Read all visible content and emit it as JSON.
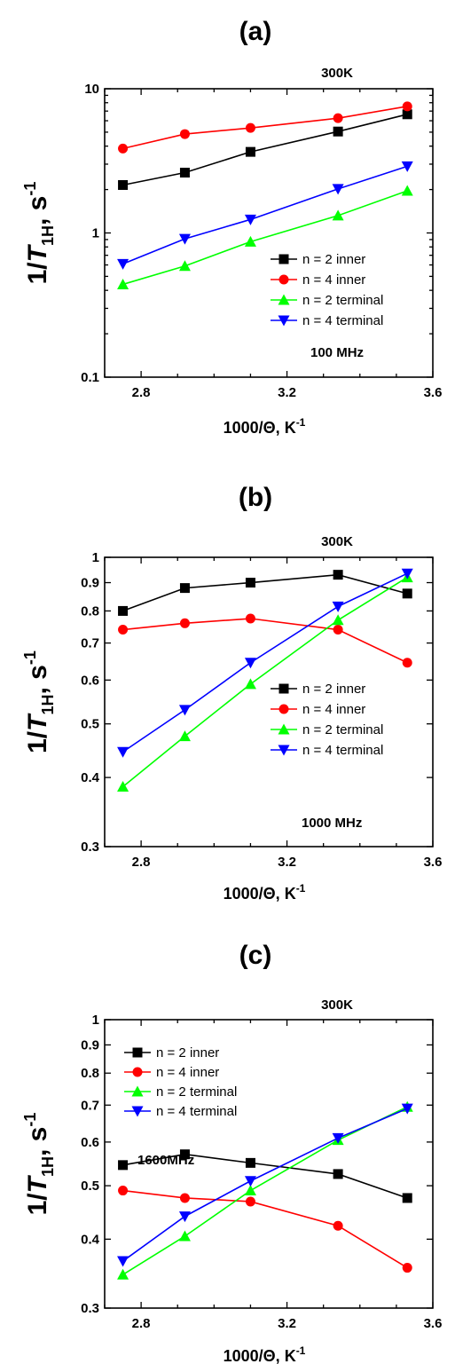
{
  "chart_data": [
    {
      "type": "line",
      "panel_label": "(a)",
      "note_top": "300K",
      "note_freq": "100 MHz",
      "xlabel": "1000/Θ, K",
      "xlabel_sup": "-1",
      "ylabel_main": "1/",
      "ylabel_var": "T",
      "ylabel_sub": "1H",
      "ylabel_unit": ", s",
      "ylabel_sup": "-1",
      "yscale": "log",
      "xlim": [
        2.7,
        3.6
      ],
      "ylim": [
        0.1,
        10
      ],
      "x_ticks": [
        2.8,
        3.2,
        3.6
      ],
      "x_tick_labels": [
        "2.8",
        "3.2",
        "3.6"
      ],
      "y_ticks": [
        0.1,
        1,
        10
      ],
      "y_tick_labels": [
        "0.1",
        "1",
        "10"
      ],
      "legend_position": "lower-right",
      "x": [
        2.75,
        2.92,
        3.1,
        3.34,
        3.53
      ],
      "series": [
        {
          "name": "n = 2 inner",
          "color": "#000000",
          "marker": "square",
          "values": [
            2.15,
            2.62,
            3.65,
            5.05,
            6.65
          ]
        },
        {
          "name": "n = 4 inner",
          "color": "#ff0000",
          "marker": "circle",
          "values": [
            3.85,
            4.85,
            5.35,
            6.25,
            7.55
          ]
        },
        {
          "name": "n = 2 terminal",
          "color": "#00ff00",
          "marker": "triangle-up",
          "values": [
            0.44,
            0.59,
            0.87,
            1.32,
            1.96
          ]
        },
        {
          "name": "n = 4 terminal",
          "color": "#0000ff",
          "marker": "triangle-down",
          "values": [
            0.61,
            0.91,
            1.24,
            2.02,
            2.9
          ]
        }
      ]
    },
    {
      "type": "line",
      "panel_label": "(b)",
      "note_top": "300K",
      "note_freq": "1000 MHz",
      "xlabel": "1000/Θ, K",
      "xlabel_sup": "-1",
      "ylabel_main": "1/",
      "ylabel_var": "T",
      "ylabel_sub": "1H",
      "ylabel_unit": ", s",
      "ylabel_sup": "-1",
      "yscale": "log",
      "xlim": [
        2.7,
        3.6
      ],
      "ylim": [
        0.3,
        1
      ],
      "x_ticks": [
        2.8,
        3.2,
        3.6
      ],
      "x_tick_labels": [
        "2.8",
        "3.2",
        "3.6"
      ],
      "y_ticks": [
        0.3,
        0.4,
        0.5,
        0.6,
        0.7,
        0.8,
        0.9,
        1
      ],
      "y_tick_labels": [
        "0.3",
        "0.4",
        "0.5",
        "0.6",
        "0.7",
        "0.8",
        "0.9",
        "1"
      ],
      "legend_position": "lower-right",
      "x": [
        2.75,
        2.92,
        3.1,
        3.34,
        3.53
      ],
      "series": [
        {
          "name": "n = 2 inner",
          "color": "#000000",
          "marker": "square",
          "values": [
            0.8,
            0.88,
            0.9,
            0.93,
            0.86
          ]
        },
        {
          "name": "n = 4 inner",
          "color": "#ff0000",
          "marker": "circle",
          "values": [
            0.74,
            0.76,
            0.775,
            0.74,
            0.645
          ]
        },
        {
          "name": "n = 2 terminal",
          "color": "#00ff00",
          "marker": "triangle-up",
          "values": [
            0.385,
            0.475,
            0.59,
            0.77,
            0.92
          ]
        },
        {
          "name": "n = 4 terminal",
          "color": "#0000ff",
          "marker": "triangle-down",
          "values": [
            0.445,
            0.53,
            0.645,
            0.815,
            0.935
          ]
        }
      ]
    },
    {
      "type": "line",
      "panel_label": "(c)",
      "note_top": "300K",
      "note_freq": "1600MHz",
      "xlabel": "1000/Θ, K",
      "xlabel_sup": "-1",
      "ylabel_main": "1/",
      "ylabel_var": "T",
      "ylabel_sub": "1H",
      "ylabel_unit": ", s",
      "ylabel_sup": "-1",
      "yscale": "log",
      "xlim": [
        2.7,
        3.6
      ],
      "ylim": [
        0.3,
        1
      ],
      "x_ticks": [
        2.8,
        3.2,
        3.6
      ],
      "x_tick_labels": [
        "2.8",
        "3.2",
        "3.6"
      ],
      "y_ticks": [
        0.3,
        0.4,
        0.5,
        0.6,
        0.7,
        0.8,
        0.9,
        1
      ],
      "y_tick_labels": [
        "0.3",
        "0.4",
        "0.5",
        "0.6",
        "0.7",
        "0.8",
        "0.9",
        "1"
      ],
      "legend_position": "top-left",
      "x": [
        2.75,
        2.92,
        3.1,
        3.34,
        3.53
      ],
      "series": [
        {
          "name": "n = 2 inner",
          "color": "#000000",
          "marker": "square",
          "values": [
            0.545,
            0.57,
            0.55,
            0.525,
            0.475
          ]
        },
        {
          "name": "n = 4 inner",
          "color": "#ff0000",
          "marker": "circle",
          "values": [
            0.49,
            0.475,
            0.468,
            0.423,
            0.355
          ]
        },
        {
          "name": "n = 2 terminal",
          "color": "#00ff00",
          "marker": "triangle-up",
          "values": [
            0.345,
            0.405,
            0.49,
            0.605,
            0.695
          ]
        },
        {
          "name": "n = 4 terminal",
          "color": "#0000ff",
          "marker": "triangle-down",
          "values": [
            0.365,
            0.44,
            0.51,
            0.61,
            0.69
          ]
        }
      ]
    }
  ]
}
